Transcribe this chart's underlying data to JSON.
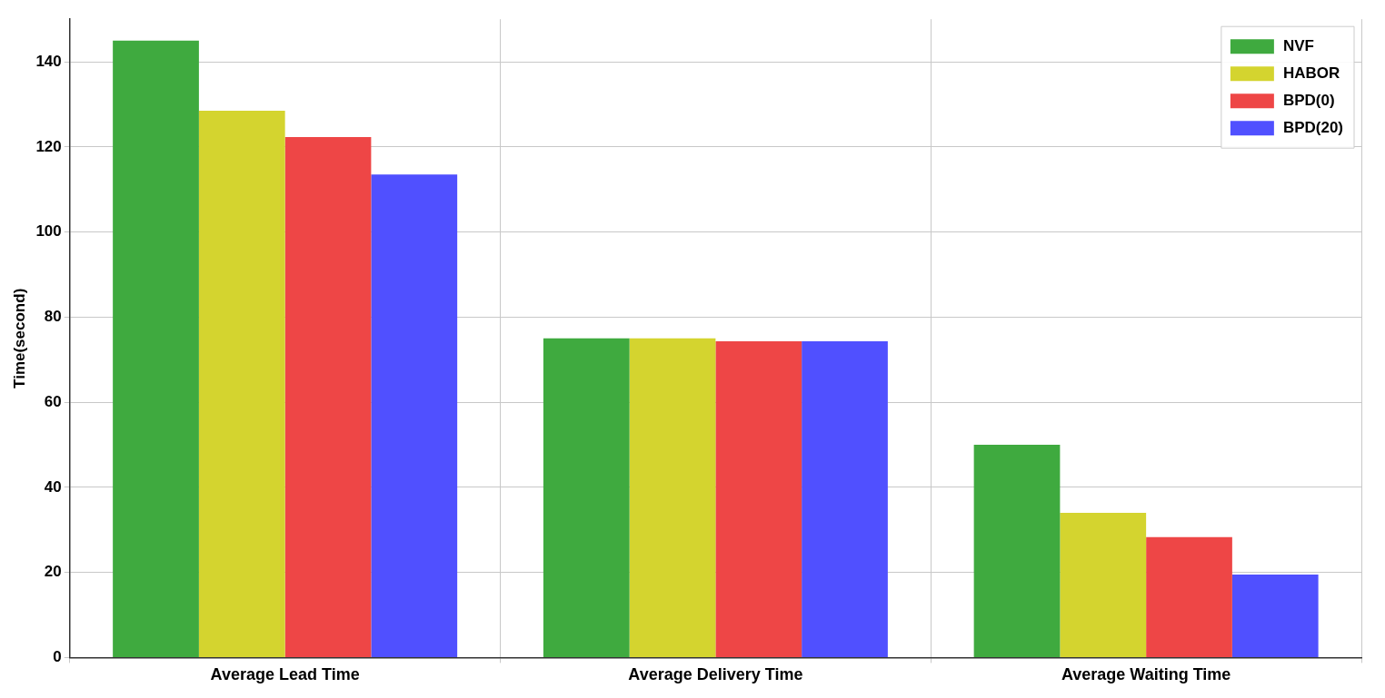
{
  "chart_data": {
    "type": "bar",
    "ylabel": "Time(second)",
    "categories": [
      "Average Lead Time",
      "Average Delivery Time",
      "Average Waiting Time"
    ],
    "series": [
      {
        "name": "NVF",
        "color": "#3faa3f",
        "values": [
          145,
          75,
          50
        ]
      },
      {
        "name": "HABOR",
        "color": "#d4d42f",
        "values": [
          128.5,
          75,
          34
        ]
      },
      {
        "name": "BPD(0)",
        "color": "#ee4646",
        "values": [
          122.3,
          74.3,
          28.3
        ]
      },
      {
        "name": "BPD(20)",
        "color": "#5050ff",
        "values": [
          113.5,
          74.3,
          19.5
        ]
      }
    ],
    "ylim": [
      0,
      150
    ],
    "yticks": [
      0,
      20,
      40,
      60,
      80,
      100,
      120,
      140
    ],
    "grid": true,
    "legend": "top right"
  }
}
